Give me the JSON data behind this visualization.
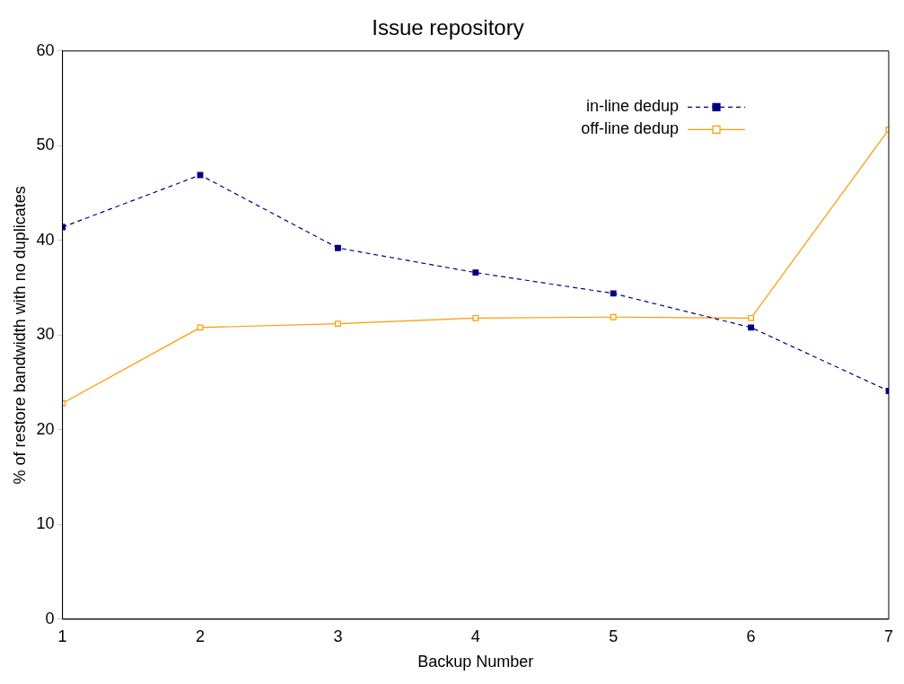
{
  "chart_data": {
    "type": "line",
    "title": "Issue repository",
    "xlabel": "Backup Number",
    "ylabel": "% of restore bandwidth with no duplicates",
    "x": [
      1,
      2,
      3,
      4,
      5,
      6,
      7
    ],
    "series": [
      {
        "name": "in-line dedup",
        "color": "#000080",
        "values": [
          41.4,
          46.9,
          39.2,
          36.6,
          34.4,
          30.8,
          24.1
        ],
        "line_style": "dashed"
      },
      {
        "name": "off-line dedup",
        "color": "#ff9900",
        "values": [
          22.8,
          30.8,
          31.2,
          31.8,
          31.9,
          31.8,
          51.7
        ],
        "line_style": "solid"
      }
    ],
    "xlim": [
      1,
      7
    ],
    "xticks": [
      1,
      2,
      3,
      4,
      5,
      6,
      7
    ],
    "ylim": [
      0,
      60
    ],
    "yticks": [
      0,
      10,
      20,
      30,
      40,
      50,
      60
    ],
    "grid": false,
    "legend": "top right",
    "marker": "square"
  }
}
